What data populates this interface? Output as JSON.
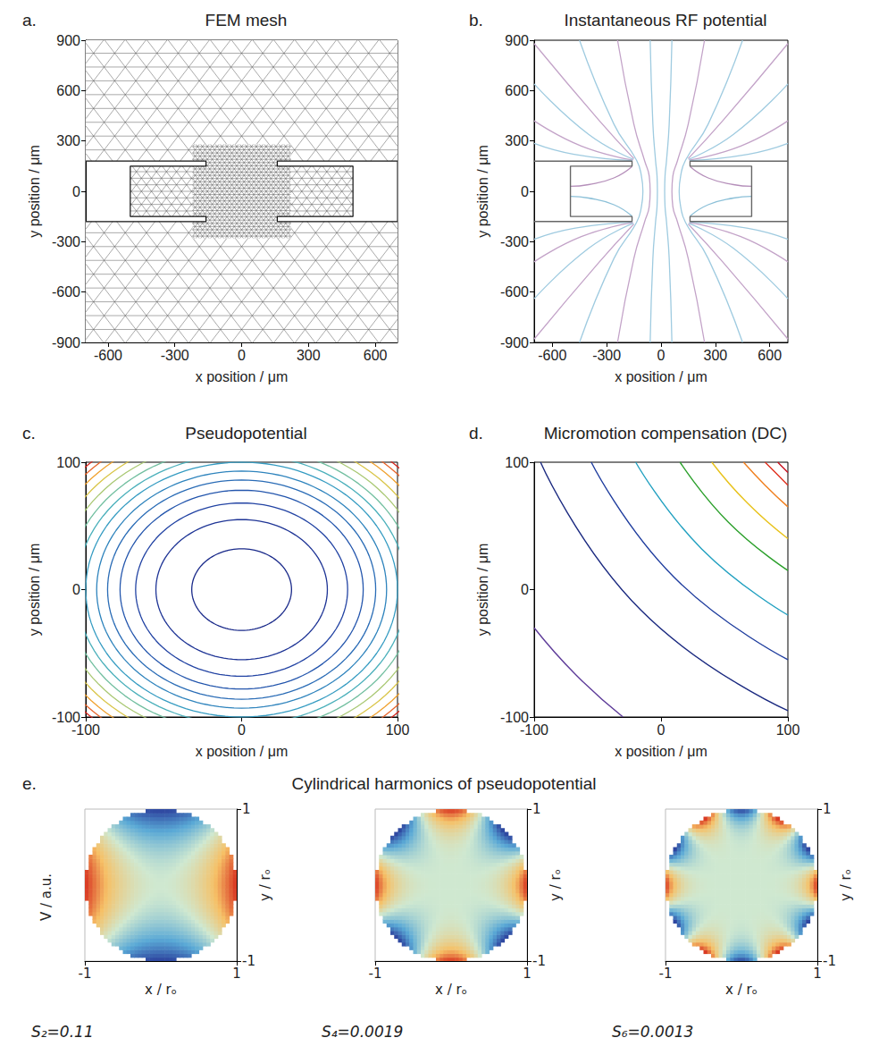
{
  "chart_data": [
    {
      "panel": "a.",
      "type": "mesh",
      "title": "FEM mesh",
      "x_label": "x position / μm",
      "y_label": "y position / μm",
      "xlim": [
        -700,
        700
      ],
      "ylim": [
        -900,
        900
      ],
      "xticks": [
        -600,
        -300,
        0,
        300,
        600
      ],
      "yticks": [
        -900,
        -600,
        -300,
        0,
        300,
        600,
        900
      ],
      "grid": false,
      "color": "#555555",
      "mesh": [
        {
          "x": [
            -700,
            700
          ],
          "y": [
            180,
            900
          ],
          "element_size": 95
        },
        {
          "x": [
            -700,
            700
          ],
          "y": [
            -900,
            -180
          ],
          "element_size": 95
        },
        {
          "x": [
            -500,
            500
          ],
          "y": [
            -150,
            150
          ],
          "element_size": 45
        },
        {
          "x": [
            -220,
            220
          ],
          "y": [
            180,
            280
          ],
          "element_size": 22
        },
        {
          "x": [
            -220,
            220
          ],
          "y": [
            -280,
            -180
          ],
          "element_size": 22
        },
        {
          "x": [
            -220,
            220
          ],
          "y": [
            -150,
            150
          ],
          "element_size": 22
        },
        {
          "x": [
            -160,
            160
          ],
          "y": [
            -180,
            180
          ],
          "element_size": 22
        }
      ],
      "geometry": [
        [
          [
            -700,
            180
          ],
          [
            -160,
            180
          ],
          [
            -160,
            150
          ],
          [
            -500,
            150
          ],
          [
            -500,
            -150
          ],
          [
            -160,
            -150
          ],
          [
            -160,
            -180
          ],
          [
            -700,
            -180
          ]
        ],
        [
          [
            700,
            180
          ],
          [
            160,
            180
          ],
          [
            160,
            150
          ],
          [
            500,
            150
          ],
          [
            500,
            -150
          ],
          [
            160,
            -150
          ],
          [
            160,
            -180
          ],
          [
            700,
            -180
          ]
        ]
      ]
    },
    {
      "panel": "b.",
      "type": "line",
      "title": "Instantaneous RF potential",
      "x_label": "x position / μm",
      "y_label": "y position / μm",
      "xlim": [
        -700,
        700
      ],
      "ylim": [
        -900,
        900
      ],
      "xticks": [
        -600,
        -300,
        0,
        300,
        600
      ],
      "yticks": [
        -900,
        -600,
        -300,
        0,
        300,
        600,
        900
      ],
      "grid": false,
      "geometry": [
        [
          [
            -700,
            180
          ],
          [
            -160,
            180
          ],
          [
            -160,
            150
          ],
          [
            -500,
            150
          ],
          [
            -500,
            -150
          ],
          [
            -160,
            -150
          ],
          [
            -160,
            -180
          ],
          [
            -700,
            -180
          ]
        ],
        [
          [
            700,
            180
          ],
          [
            160,
            180
          ],
          [
            160,
            150
          ],
          [
            500,
            150
          ],
          [
            500,
            -150
          ],
          [
            160,
            -150
          ],
          [
            160,
            -180
          ],
          [
            700,
            -180
          ]
        ]
      ],
      "lines": [
        {
          "color": "#9fcbe0",
          "points": [
            [
              60,
              -900
            ],
            [
              45,
              -400
            ],
            [
              30,
              -180
            ],
            [
              22,
              -90
            ],
            [
              20,
              0
            ],
            [
              22,
              90
            ],
            [
              30,
              180
            ],
            [
              45,
              400
            ],
            [
              60,
              900
            ]
          ]
        },
        {
          "color": "#c3a3c8",
          "points": [
            [
              240,
              -900
            ],
            [
              150,
              -400
            ],
            [
              90,
              -180
            ],
            [
              65,
              -90
            ],
            [
              60,
              0
            ],
            [
              65,
              90
            ],
            [
              90,
              180
            ],
            [
              150,
              400
            ],
            [
              240,
              900
            ]
          ]
        },
        {
          "color": "#9fcbe0",
          "points": [
            [
              450,
              -900
            ],
            [
              260,
              -400
            ],
            [
              135,
              -185
            ],
            [
              108,
              -90
            ],
            [
              100,
              0
            ],
            [
              108,
              90
            ],
            [
              135,
              185
            ],
            [
              260,
              400
            ],
            [
              450,
              900
            ]
          ]
        },
        {
          "color": "#9fcbe0",
          "points": [
            [
              -60,
              -900
            ],
            [
              -45,
              -400
            ],
            [
              -30,
              -180
            ],
            [
              -22,
              -90
            ],
            [
              -20,
              0
            ],
            [
              -22,
              90
            ],
            [
              -30,
              180
            ],
            [
              -45,
              400
            ],
            [
              -60,
              900
            ]
          ]
        },
        {
          "color": "#c3a3c8",
          "points": [
            [
              -240,
              -900
            ],
            [
              -150,
              -400
            ],
            [
              -90,
              -180
            ],
            [
              -65,
              -90
            ],
            [
              -60,
              0
            ],
            [
              -65,
              90
            ],
            [
              -90,
              180
            ],
            [
              -150,
              400
            ],
            [
              -240,
              900
            ]
          ]
        },
        {
          "color": "#9fcbe0",
          "points": [
            [
              -450,
              -900
            ],
            [
              -260,
              -400
            ],
            [
              -135,
              -185
            ],
            [
              -108,
              -90
            ],
            [
              -100,
              0
            ],
            [
              -108,
              90
            ],
            [
              -135,
              185
            ],
            [
              -260,
              400
            ],
            [
              -450,
              900
            ]
          ]
        },
        {
          "color": "#c3a3c8",
          "points": [
            [
              150,
              195
            ],
            [
              340,
              420
            ],
            [
              700,
              880
            ]
          ]
        },
        {
          "color": "#9fcbe0",
          "points": [
            [
              152,
              190
            ],
            [
              400,
              340
            ],
            [
              700,
              640
            ]
          ]
        },
        {
          "color": "#c3a3c8",
          "points": [
            [
              155,
              186
            ],
            [
              440,
              270
            ],
            [
              700,
              420
            ]
          ]
        },
        {
          "color": "#9fcbe0",
          "points": [
            [
              158,
              183
            ],
            [
              480,
              220
            ],
            [
              700,
              285
            ]
          ]
        },
        {
          "color": "#c3a3c8",
          "points": [
            [
              150,
              -195
            ],
            [
              340,
              -420
            ],
            [
              700,
              -880
            ]
          ]
        },
        {
          "color": "#9fcbe0",
          "points": [
            [
              152,
              -190
            ],
            [
              400,
              -340
            ],
            [
              700,
              -640
            ]
          ]
        },
        {
          "color": "#c3a3c8",
          "points": [
            [
              155,
              -186
            ],
            [
              440,
              -270
            ],
            [
              700,
              -420
            ]
          ]
        },
        {
          "color": "#9fcbe0",
          "points": [
            [
              158,
              -183
            ],
            [
              480,
              -220
            ],
            [
              700,
              -285
            ]
          ]
        },
        {
          "color": "#c3a3c8",
          "points": [
            [
              -150,
              195
            ],
            [
              -340,
              420
            ],
            [
              -700,
              880
            ]
          ]
        },
        {
          "color": "#9fcbe0",
          "points": [
            [
              -152,
              190
            ],
            [
              -400,
              340
            ],
            [
              -700,
              640
            ]
          ]
        },
        {
          "color": "#c3a3c8",
          "points": [
            [
              -155,
              186
            ],
            [
              -440,
              270
            ],
            [
              -700,
              420
            ]
          ]
        },
        {
          "color": "#9fcbe0",
          "points": [
            [
              -158,
              183
            ],
            [
              -480,
              220
            ],
            [
              -700,
              285
            ]
          ]
        },
        {
          "color": "#c3a3c8",
          "points": [
            [
              -150,
              -195
            ],
            [
              -340,
              -420
            ],
            [
              -700,
              -880
            ]
          ]
        },
        {
          "color": "#9fcbe0",
          "points": [
            [
              -152,
              -190
            ],
            [
              -400,
              -340
            ],
            [
              -700,
              -640
            ]
          ]
        },
        {
          "color": "#c3a3c8",
          "points": [
            [
              -155,
              -186
            ],
            [
              -440,
              -270
            ],
            [
              -700,
              -420
            ]
          ]
        },
        {
          "color": "#9fcbe0",
          "points": [
            [
              -158,
              -183
            ],
            [
              -480,
              -220
            ],
            [
              -700,
              -285
            ]
          ]
        },
        {
          "color": "#b58fba",
          "points": [
            [
              -160,
              148
            ],
            [
              -260,
              80
            ],
            [
              -400,
              40
            ],
            [
              -500,
              30
            ]
          ]
        },
        {
          "color": "#8cc0d8",
          "points": [
            [
              -160,
              -148
            ],
            [
              -260,
              -80
            ],
            [
              -400,
              -40
            ],
            [
              -500,
              -30
            ]
          ]
        },
        {
          "color": "#b58fba",
          "points": [
            [
              160,
              148
            ],
            [
              260,
              80
            ],
            [
              400,
              40
            ],
            [
              500,
              30
            ]
          ]
        },
        {
          "color": "#8cc0d8",
          "points": [
            [
              160,
              -148
            ],
            [
              260,
              -80
            ],
            [
              400,
              -40
            ],
            [
              500,
              -30
            ]
          ]
        }
      ]
    },
    {
      "panel": "c.",
      "type": "contour",
      "title": "Pseudopotential",
      "x_label": "x position / μm",
      "y_label": "y position / μm",
      "xlim": [
        -100,
        100
      ],
      "ylim": [
        -100,
        100
      ],
      "xticks": [
        -100,
        0,
        100
      ],
      "yticks": [
        -100,
        0,
        100
      ],
      "grid": false,
      "circles": {
        "radii": [
          32,
          55,
          68,
          78,
          86,
          93,
          100,
          106,
          112,
          118,
          124,
          130,
          135,
          139
        ],
        "colors": [
          "#1a2a8a",
          "#1f3596",
          "#2243a3",
          "#2456ad",
          "#2a6cb6",
          "#2f84bd",
          "#369cc2",
          "#4bb0bb",
          "#72bfa0",
          "#a9c873",
          "#d9c548",
          "#f0a12e",
          "#e8642a",
          "#d7261e"
        ]
      }
    },
    {
      "panel": "d.",
      "type": "contour",
      "title": "Micromotion compensation (DC)",
      "x_label": "x position / μm",
      "y_label": "y position / μm",
      "xlim": [
        -100,
        100
      ],
      "ylim": [
        -100,
        100
      ],
      "xticks": [
        -100,
        0,
        100
      ],
      "yticks": [
        -100,
        0,
        100
      ],
      "grid": false,
      "contours": [
        {
          "color": "#5e3c99",
          "points": [
            [
              -100,
              -30
            ],
            [
              -67,
              -67
            ],
            [
              -30,
              -100
            ]
          ]
        },
        {
          "color": "#1b2a80",
          "points": [
            [
              -95,
              100
            ],
            [
              -16,
              -16
            ],
            [
              100,
              -95
            ]
          ]
        },
        {
          "color": "#1f3d9e",
          "points": [
            [
              -55,
              100
            ],
            [
              10,
              10
            ],
            [
              100,
              -55
            ]
          ]
        },
        {
          "color": "#21a0c0",
          "points": [
            [
              -20,
              100
            ],
            [
              32,
              32
            ],
            [
              100,
              -20
            ]
          ]
        },
        {
          "color": "#2ca02c",
          "points": [
            [
              15,
              100
            ],
            [
              53,
              53
            ],
            [
              100,
              15
            ]
          ]
        },
        {
          "color": "#e8c21a",
          "points": [
            [
              40,
              100
            ],
            [
              68,
              68
            ],
            [
              100,
              40
            ]
          ]
        },
        {
          "color": "#f07f1e",
          "points": [
            [
              65,
              100
            ],
            [
              82,
              82
            ],
            [
              100,
              65
            ]
          ]
        },
        {
          "color": "#e0301e",
          "points": [
            [
              82,
              100
            ],
            [
              91,
              91
            ],
            [
              100,
              82
            ]
          ]
        },
        {
          "color": "#c8101e",
          "points": [
            [
              92,
              100
            ],
            [
              96,
              96
            ],
            [
              100,
              92
            ]
          ]
        }
      ]
    },
    {
      "panel": "e.",
      "type": "surface",
      "title": "Cylindrical harmonics of pseudopotential",
      "x_label": "x / rₒ",
      "y_label": "y / rₒ",
      "z_label": "V / a.u.",
      "xlim": [
        -1,
        1
      ],
      "ylim": [
        -1,
        1
      ],
      "xticks": [
        -1,
        1
      ],
      "yticks": [
        -1,
        1
      ],
      "zlim": [
        -1,
        1
      ],
      "grid": false,
      "harmonics": [
        {
          "order": 2,
          "label": "S₂=0.11"
        },
        {
          "order": 4,
          "label": "S₄=0.0019"
        },
        {
          "order": 6,
          "label": "S₆=0.0013"
        }
      ]
    }
  ]
}
